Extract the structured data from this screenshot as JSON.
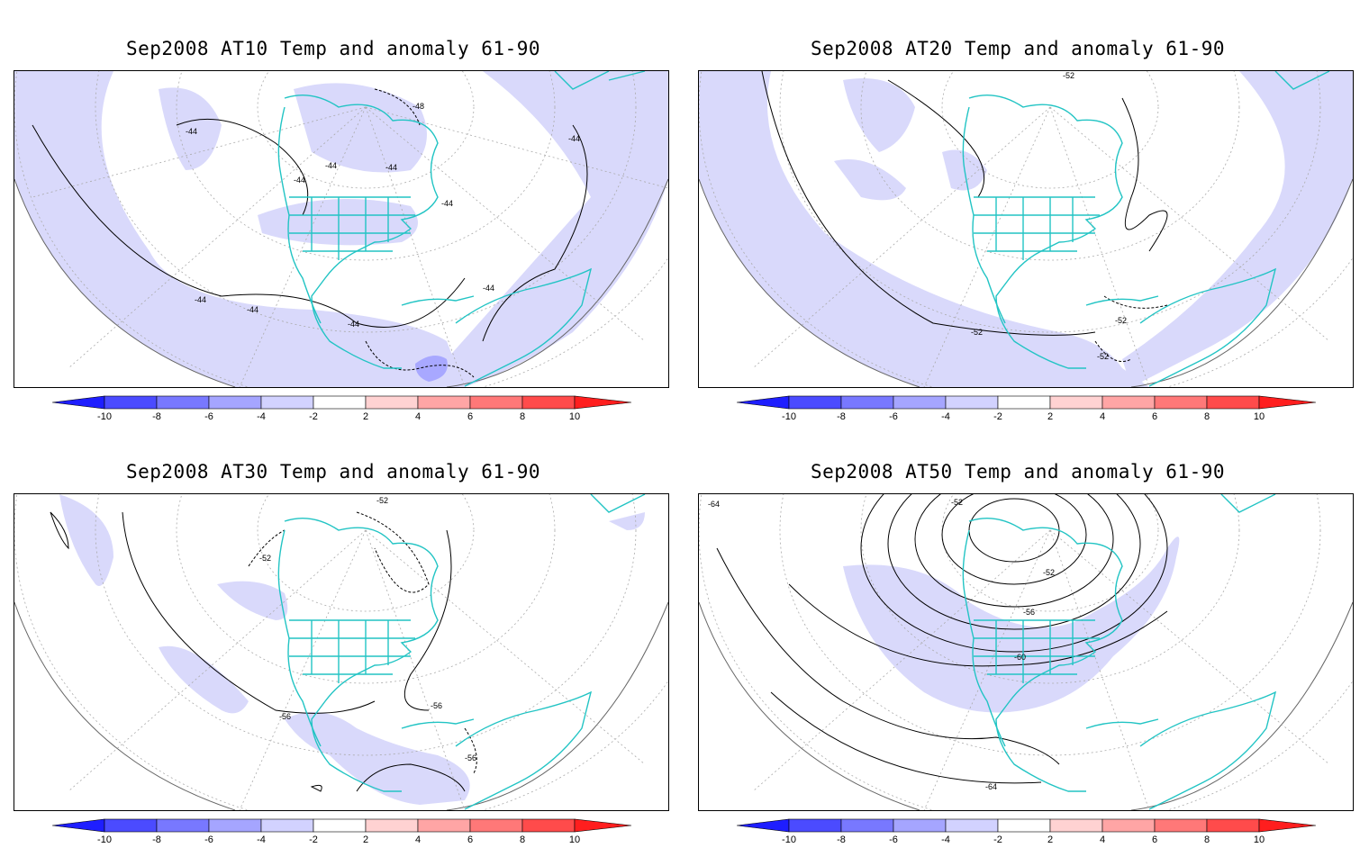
{
  "panels": [
    {
      "id": "at10",
      "title": "Sep2008 AT10 Temp and anomaly 61-90",
      "contour_labels": [
        "-48",
        "-44",
        "-44",
        "-44",
        "-44",
        "-44",
        "-44",
        "-44",
        "-44",
        "-44",
        "-44"
      ]
    },
    {
      "id": "at20",
      "title": "Sep2008 AT20 Temp and anomaly 61-90",
      "contour_labels": [
        "-52",
        "-52",
        "-52",
        "-52"
      ]
    },
    {
      "id": "at30",
      "title": "Sep2008 AT30 Temp and anomaly 61-90",
      "contour_labels": [
        "-52",
        "-52",
        "-56",
        "-56",
        "-56"
      ]
    },
    {
      "id": "at50",
      "title": "Sep2008 AT50 Temp and anomaly 61-90",
      "contour_labels": [
        "-64",
        "-52",
        "-52",
        "-56",
        "-60",
        "-64"
      ]
    }
  ],
  "colorbar": {
    "tick_labels": [
      "-10",
      "-8",
      "-6",
      "-4",
      "-2",
      "2",
      "4",
      "6",
      "8",
      "10"
    ],
    "colors": [
      "#1e1eff",
      "#4b4bff",
      "#7878ff",
      "#a5a5ff",
      "#d2d2ff",
      "#ffffff",
      "#ffd2d2",
      "#ffa5a5",
      "#ff7878",
      "#ff4b4b",
      "#ff1e1e"
    ]
  },
  "colors": {
    "coastline": "#22c4c4",
    "anomaly_fill": "#d9d9fb",
    "anomaly_fill_strong": "#a8a8ff",
    "contour": "#000000",
    "grid": "#aaaaaa"
  }
}
